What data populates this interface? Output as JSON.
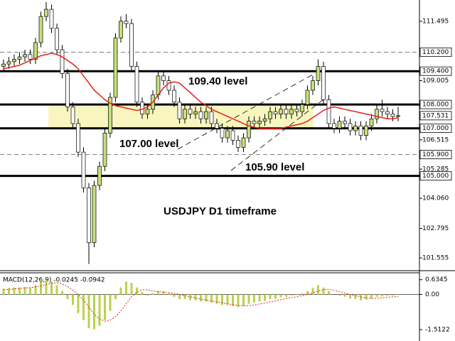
{
  "chart_data": [
    {
      "type": "candlestick",
      "annotations": [
        "109.40 level",
        "107.00 level",
        "105.90 level",
        "USDJPY D1 timeframe"
      ],
      "open": [
        109.6,
        109.7,
        109.8,
        109.9,
        110.0,
        110.1,
        109.9,
        110.6,
        111.7,
        112.0,
        111.2,
        110.3,
        109.3,
        107.9,
        107.2,
        106.0,
        104.5,
        102.2,
        104.6,
        105.4,
        106.8,
        108.3,
        110.8,
        111.5,
        111.4,
        109.6,
        108.1,
        107.6,
        107.8,
        108.4,
        109.2,
        109.0,
        108.6,
        108.1,
        107.4,
        107.8,
        107.6,
        107.7,
        107.4,
        107.7,
        107.2,
        107.0,
        106.6,
        106.9,
        106.5,
        106.2,
        106.6,
        107.3,
        107.2,
        107.3,
        107.4,
        107.7,
        107.6,
        107.8,
        107.6,
        107.8,
        107.7,
        108.0,
        108.6,
        109.0,
        109.6,
        108.2,
        107.2,
        107.0,
        107.3,
        107.2,
        106.9,
        107.1,
        106.7,
        107.1,
        107.4,
        107.8,
        107.7,
        107.6,
        107.5
      ],
      "high": [
        109.9,
        110.0,
        110.1,
        110.2,
        110.3,
        110.3,
        110.8,
        111.9,
        112.3,
        112.2,
        111.4,
        110.5,
        109.5,
        108.1,
        107.4,
        106.2,
        104.7,
        104.8,
        105.6,
        107.0,
        108.5,
        111.0,
        111.7,
        111.8,
        111.6,
        109.8,
        108.3,
        108.0,
        108.6,
        109.4,
        109.4,
        109.2,
        108.8,
        108.3,
        108.0,
        108.0,
        107.9,
        107.9,
        107.9,
        107.9,
        107.4,
        107.2,
        107.1,
        107.1,
        106.7,
        106.8,
        107.5,
        107.5,
        107.5,
        107.6,
        107.9,
        107.9,
        108.0,
        108.0,
        108.0,
        108.0,
        108.2,
        108.8,
        109.2,
        109.9,
        109.8,
        108.4,
        107.4,
        107.5,
        107.5,
        107.4,
        107.3,
        107.3,
        107.3,
        107.6,
        108.0,
        108.2,
        107.9,
        107.8,
        107.9
      ],
      "low": [
        109.4,
        109.5,
        109.6,
        109.7,
        109.8,
        109.7,
        109.7,
        110.4,
        111.5,
        111.0,
        110.1,
        109.1,
        107.7,
        107.0,
        105.8,
        104.3,
        101.3,
        102.0,
        104.4,
        105.2,
        106.6,
        108.1,
        110.6,
        111.2,
        109.4,
        107.9,
        107.4,
        107.4,
        107.6,
        108.2,
        108.8,
        108.4,
        107.9,
        107.2,
        107.2,
        107.4,
        107.4,
        107.2,
        107.2,
        107.0,
        106.8,
        106.4,
        106.4,
        106.3,
        106.0,
        106.0,
        106.4,
        107.0,
        107.0,
        107.1,
        107.2,
        107.4,
        107.4,
        107.4,
        107.4,
        107.5,
        107.5,
        107.8,
        108.4,
        108.8,
        108.0,
        107.0,
        106.8,
        106.8,
        107.0,
        106.7,
        106.7,
        106.5,
        106.5,
        106.9,
        107.2,
        107.5,
        107.4,
        107.3,
        107.3
      ],
      "close": [
        109.7,
        109.8,
        109.9,
        110.0,
        110.1,
        109.9,
        110.6,
        111.7,
        112.0,
        111.2,
        110.3,
        109.3,
        107.9,
        107.2,
        106.0,
        104.5,
        102.2,
        104.6,
        105.4,
        106.8,
        108.3,
        110.8,
        111.5,
        111.4,
        109.6,
        108.1,
        107.6,
        107.8,
        108.4,
        109.2,
        109.0,
        108.6,
        108.1,
        107.4,
        107.8,
        107.6,
        107.7,
        107.4,
        107.7,
        107.2,
        107.0,
        106.6,
        106.9,
        106.5,
        106.2,
        106.6,
        107.3,
        107.2,
        107.3,
        107.4,
        107.7,
        107.6,
        107.8,
        107.6,
        107.8,
        107.7,
        108.0,
        108.6,
        109.0,
        109.6,
        108.2,
        107.2,
        107.0,
        107.3,
        107.2,
        106.9,
        107.1,
        106.7,
        107.1,
        107.4,
        107.8,
        107.7,
        107.6,
        107.5,
        107.53
      ],
      "moving_average": {
        "color": "#e8201a",
        "values": [
          109.5,
          109.55,
          109.6,
          109.65,
          109.75,
          109.85,
          109.95,
          110.05,
          110.1,
          110.15,
          110.1,
          110.0,
          109.85,
          109.7,
          109.5,
          109.2,
          108.9,
          108.6,
          108.4,
          108.2,
          108.05,
          107.95,
          107.9,
          107.85,
          107.8,
          107.75,
          107.8,
          107.9,
          108.1,
          108.4,
          108.7,
          108.9,
          108.95,
          108.9,
          108.7,
          108.5,
          108.3,
          108.1,
          107.95,
          107.8,
          107.7,
          107.6,
          107.5,
          107.4,
          107.3,
          107.2,
          107.1,
          107.05,
          107.0,
          107.0,
          107.0,
          107.0,
          107.0,
          107.05,
          107.1,
          107.15,
          107.2,
          107.3,
          107.45,
          107.6,
          107.75,
          107.85,
          107.9,
          107.85,
          107.8,
          107.75,
          107.7,
          107.65,
          107.6,
          107.55,
          107.5,
          107.45,
          107.4,
          107.4,
          107.45
        ]
      },
      "up_color": "#c5e07a",
      "down_color": "#ffffff",
      "band": {
        "from": 107.0,
        "to": 108.0,
        "color": "#f8f5c0"
      },
      "level_lines": [
        {
          "value": 110.2,
          "label": "110.200",
          "style": "dashed"
        },
        {
          "value": 109.4,
          "label": "109.400",
          "style": "solid"
        },
        {
          "value": 108.0,
          "label": "108.000",
          "style": "solid"
        },
        {
          "value": 107.531,
          "label": "107.531",
          "style": "none"
        },
        {
          "value": 107.0,
          "label": "107.000",
          "style": "solid"
        },
        {
          "value": 105.9,
          "label": "105.900",
          "style": "dashed"
        },
        {
          "value": 105.0,
          "label": "105.000",
          "style": "solid"
        }
      ],
      "ylim": [
        101.05,
        112.39
      ],
      "yticks": [
        111.495,
        {
          "value": 109.005,
          "label": "109.005"
        },
        106.515,
        105.285,
        {
          "value": 104.06,
          "label": "104.060"
        },
        102.795,
        101.555
      ]
    },
    {
      "type": "macd",
      "title": "MACD(12,26,9) -0.0245 -0.0942",
      "values": [
        0.25,
        0.28,
        0.3,
        0.3,
        0.32,
        0.3,
        0.4,
        0.55,
        0.62,
        0.55,
        0.4,
        0.15,
        -0.2,
        -0.45,
        -0.8,
        -1.1,
        -1.45,
        -1.5,
        -1.35,
        -1.1,
        -0.7,
        -0.2,
        0.3,
        0.55,
        0.5,
        0.3,
        0.1,
        -0.05,
        0.05,
        0.15,
        0.15,
        0.05,
        -0.1,
        -0.2,
        -0.2,
        -0.25,
        -0.25,
        -0.3,
        -0.3,
        -0.35,
        -0.4,
        -0.45,
        -0.45,
        -0.5,
        -0.55,
        -0.5,
        -0.4,
        -0.35,
        -0.3,
        -0.28,
        -0.2,
        -0.18,
        -0.12,
        -0.1,
        -0.05,
        -0.02,
        0.05,
        0.15,
        0.28,
        0.4,
        0.3,
        0.15,
        0.0,
        -0.05,
        -0.1,
        -0.18,
        -0.2,
        -0.25,
        -0.22,
        -0.18,
        -0.1,
        -0.08,
        -0.06,
        -0.05,
        -0.0245
      ],
      "signal": [
        0.2,
        0.22,
        0.24,
        0.26,
        0.28,
        0.29,
        0.32,
        0.37,
        0.43,
        0.48,
        0.5,
        0.45,
        0.34,
        0.18,
        0.0,
        -0.25,
        -0.55,
        -0.85,
        -1.05,
        -1.15,
        -1.1,
        -0.95,
        -0.7,
        -0.4,
        -0.1,
        0.1,
        0.2,
        0.2,
        0.15,
        0.12,
        0.1,
        0.08,
        0.05,
        0.0,
        -0.05,
        -0.1,
        -0.15,
        -0.2,
        -0.24,
        -0.28,
        -0.32,
        -0.36,
        -0.4,
        -0.44,
        -0.47,
        -0.49,
        -0.48,
        -0.45,
        -0.41,
        -0.37,
        -0.32,
        -0.28,
        -0.23,
        -0.18,
        -0.14,
        -0.1,
        -0.05,
        0.0,
        0.07,
        0.15,
        0.2,
        0.22,
        0.18,
        0.12,
        0.06,
        0.0,
        -0.05,
        -0.1,
        -0.15,
        -0.17,
        -0.17,
        -0.15,
        -0.12,
        -0.1,
        -0.0942
      ],
      "color": "#b8d24c",
      "signal_color": "#e8201a",
      "ylim": [
        -2.0,
        0.9
      ],
      "yticks": [
        0.6345,
        {
          "value": 0,
          "label": "0.00"
        },
        -1.5122
      ]
    }
  ]
}
